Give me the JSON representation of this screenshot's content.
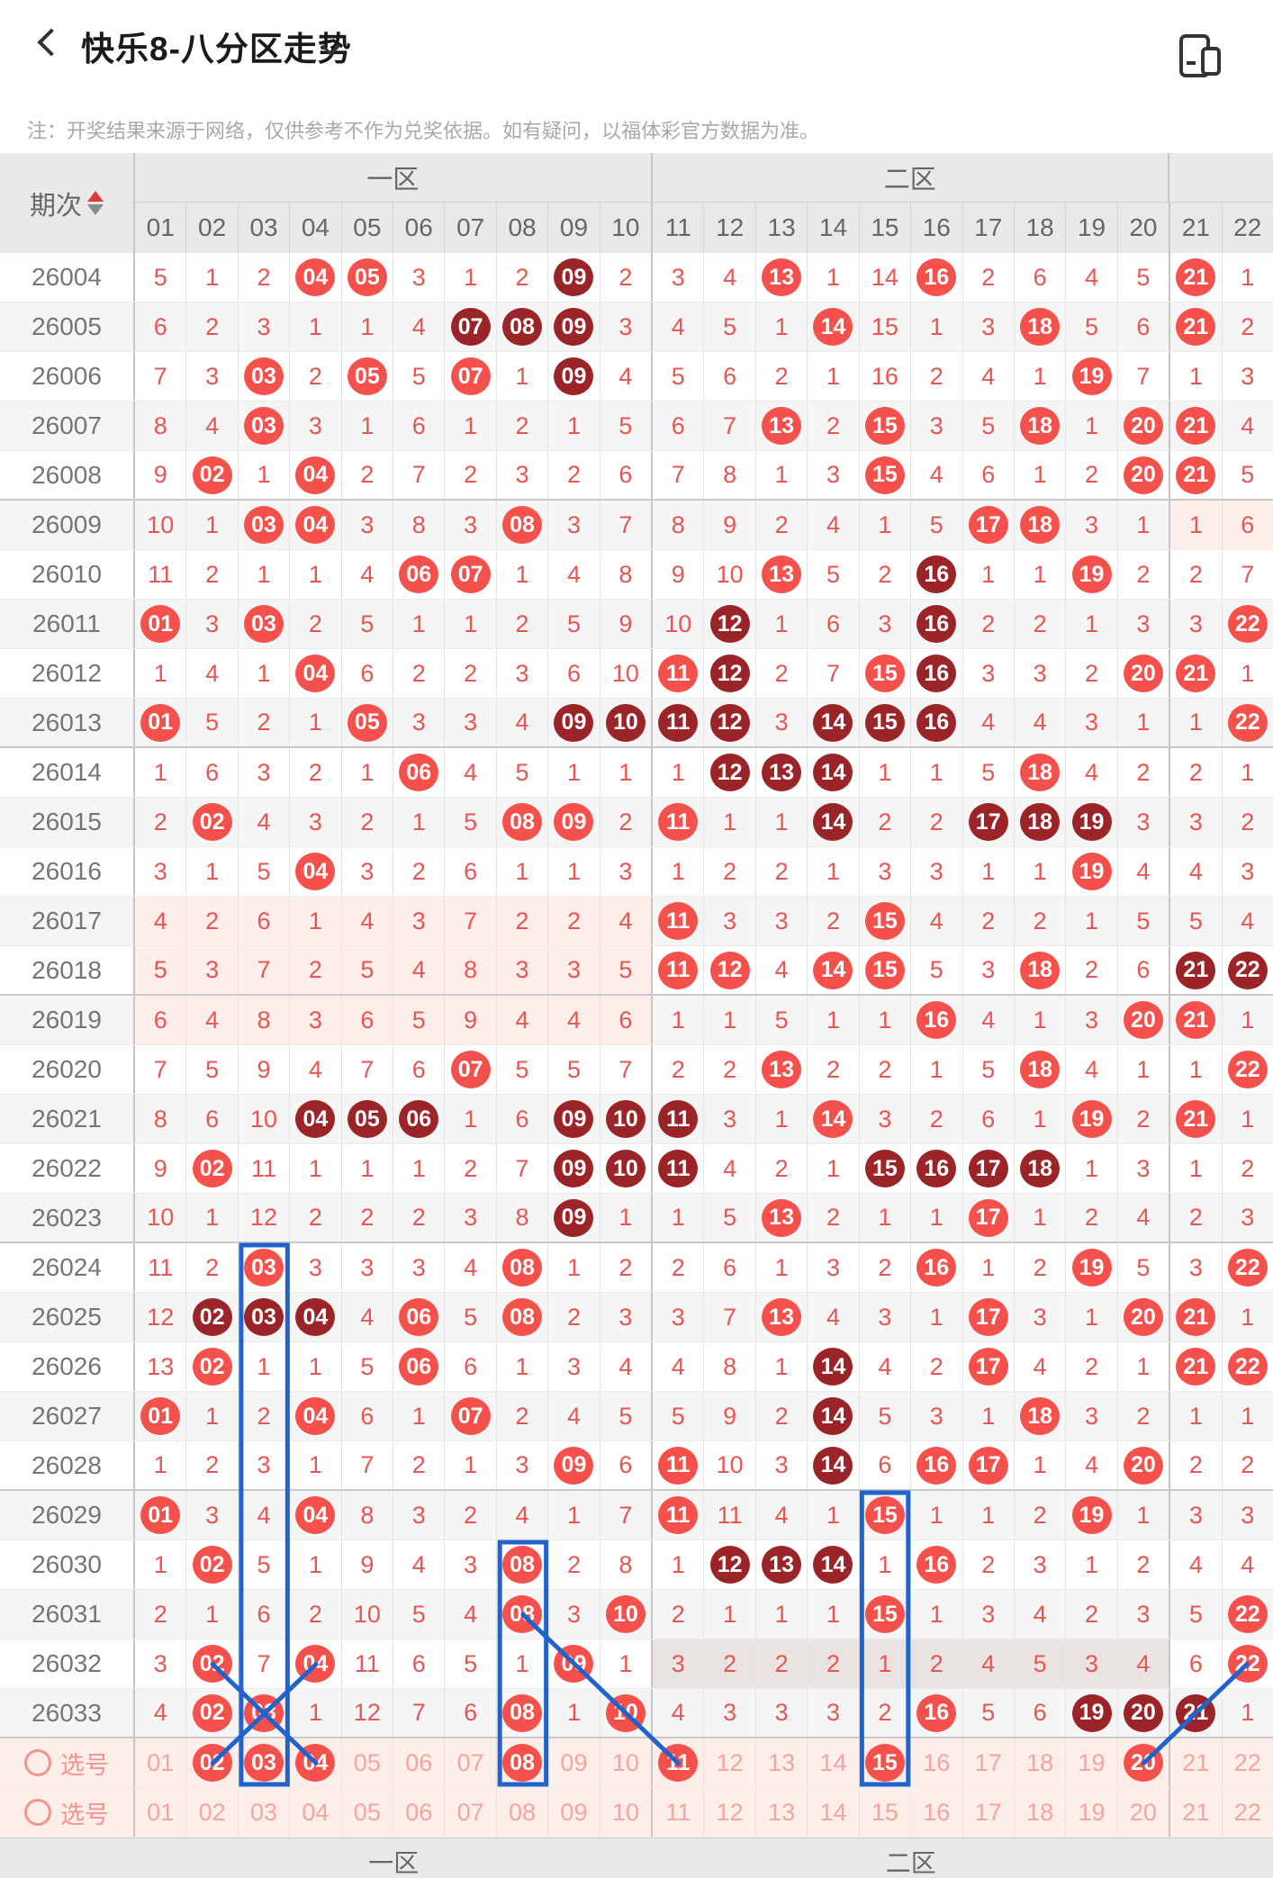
{
  "header": {
    "title": "快乐8-八分区走势",
    "note": "注：开奖结果来源于网络，仅供参考不作为兑奖依据。如有疑问，以福体彩官方数据为准。"
  },
  "table": {
    "index_label": "期次",
    "zones": [
      {
        "label": "一区",
        "span": 10
      },
      {
        "label": "二区",
        "span": 10
      },
      {
        "label": "",
        "span": 2
      }
    ],
    "columns": [
      "01",
      "02",
      "03",
      "04",
      "05",
      "06",
      "07",
      "08",
      "09",
      "10",
      "11",
      "12",
      "13",
      "14",
      "15",
      "16",
      "17",
      "18",
      "19",
      "20",
      "21",
      "22"
    ],
    "rows": [
      {
        "id": "26004",
        "cells": [
          "5",
          "1",
          "2",
          "b04",
          "b05",
          "3",
          "1",
          "2",
          "d09",
          "2",
          "3",
          "4",
          "b13",
          "1",
          "14",
          "b16",
          "2",
          "6",
          "4",
          "5",
          "b21",
          "1"
        ]
      },
      {
        "id": "26005",
        "cells": [
          "6",
          "2",
          "3",
          "1",
          "1",
          "4",
          "d07",
          "d08",
          "d09",
          "3",
          "4",
          "5",
          "1",
          "b14",
          "15",
          "1",
          "3",
          "b18",
          "5",
          "6",
          "b21",
          "2"
        ]
      },
      {
        "id": "26006",
        "cells": [
          "7",
          "3",
          "b03",
          "2",
          "b05",
          "5",
          "b07",
          "1",
          "d09",
          "4",
          "5",
          "6",
          "2",
          "1",
          "16",
          "2",
          "4",
          "1",
          "b19",
          "7",
          "1",
          "3"
        ]
      },
      {
        "id": "26007",
        "cells": [
          "8",
          "4",
          "b03",
          "3",
          "1",
          "6",
          "1",
          "2",
          "1",
          "5",
          "6",
          "7",
          "b13",
          "2",
          "b15",
          "3",
          "5",
          "b18",
          "1",
          "b20",
          "b21",
          "4"
        ]
      },
      {
        "id": "26008",
        "cells": [
          "9",
          "b02",
          "1",
          "b04",
          "2",
          "7",
          "2",
          "3",
          "2",
          "6",
          "7",
          "8",
          "1",
          "3",
          "b15",
          "4",
          "6",
          "1",
          "2",
          "b20",
          "b21",
          "5"
        ]
      },
      {
        "id": "26009",
        "cells": [
          "10",
          "1",
          "b03",
          "b04",
          "3",
          "8",
          "3",
          "b08",
          "3",
          "7",
          "8",
          "9",
          "2",
          "4",
          "1",
          "5",
          "b17",
          "b18",
          "3",
          "1",
          "1",
          "6"
        ],
        "hl": {
          "cols": [
            21,
            22
          ],
          "type": "pink"
        }
      },
      {
        "id": "26010",
        "cells": [
          "11",
          "2",
          "1",
          "1",
          "4",
          "b06",
          "b07",
          "1",
          "4",
          "8",
          "9",
          "10",
          "b13",
          "5",
          "2",
          "d16",
          "1",
          "1",
          "b19",
          "2",
          "2",
          "7"
        ]
      },
      {
        "id": "26011",
        "cells": [
          "b01",
          "3",
          "b03",
          "2",
          "5",
          "1",
          "1",
          "2",
          "5",
          "9",
          "10",
          "d12",
          "1",
          "6",
          "3",
          "d16",
          "2",
          "2",
          "1",
          "3",
          "3",
          "b22"
        ]
      },
      {
        "id": "26012",
        "cells": [
          "1",
          "4",
          "1",
          "b04",
          "6",
          "2",
          "2",
          "3",
          "6",
          "10",
          "b11",
          "d12",
          "2",
          "7",
          "b15",
          "d16",
          "3",
          "3",
          "2",
          "b20",
          "b21",
          "1"
        ]
      },
      {
        "id": "26013",
        "cells": [
          "b01",
          "5",
          "2",
          "1",
          "b05",
          "3",
          "3",
          "4",
          "d09",
          "d10",
          "d11",
          "d12",
          "3",
          "d14",
          "d15",
          "d16",
          "4",
          "4",
          "3",
          "1",
          "1",
          "b22"
        ]
      },
      {
        "id": "26014",
        "cells": [
          "1",
          "6",
          "3",
          "2",
          "1",
          "b06",
          "4",
          "5",
          "1",
          "1",
          "1",
          "d12",
          "d13",
          "d14",
          "1",
          "1",
          "5",
          "b18",
          "4",
          "2",
          "2",
          "1"
        ]
      },
      {
        "id": "26015",
        "cells": [
          "2",
          "b02",
          "4",
          "3",
          "2",
          "1",
          "5",
          "b08",
          "b09",
          "2",
          "b11",
          "1",
          "1",
          "d14",
          "2",
          "2",
          "d17",
          "d18",
          "d19",
          "3",
          "3",
          "2"
        ]
      },
      {
        "id": "26016",
        "cells": [
          "3",
          "1",
          "5",
          "b04",
          "3",
          "2",
          "6",
          "1",
          "1",
          "3",
          "1",
          "2",
          "2",
          "1",
          "3",
          "3",
          "1",
          "1",
          "b19",
          "4",
          "4",
          "3"
        ]
      },
      {
        "id": "26017",
        "cells": [
          "4",
          "2",
          "6",
          "1",
          "4",
          "3",
          "7",
          "2",
          "2",
          "4",
          "b11",
          "3",
          "3",
          "2",
          "b15",
          "4",
          "2",
          "2",
          "1",
          "5",
          "5",
          "4"
        ],
        "hl": {
          "cols": [
            1,
            10
          ],
          "type": "pink"
        }
      },
      {
        "id": "26018",
        "cells": [
          "5",
          "3",
          "7",
          "2",
          "5",
          "4",
          "8",
          "3",
          "3",
          "5",
          "b11",
          "b12",
          "4",
          "b14",
          "b15",
          "5",
          "3",
          "b18",
          "2",
          "6",
          "d21",
          "d22"
        ],
        "hl": {
          "cols": [
            1,
            10
          ],
          "type": "pink"
        }
      },
      {
        "id": "26019",
        "cells": [
          "6",
          "4",
          "8",
          "3",
          "6",
          "5",
          "9",
          "4",
          "4",
          "6",
          "1",
          "1",
          "5",
          "1",
          "1",
          "b16",
          "4",
          "1",
          "3",
          "b20",
          "b21",
          "1"
        ],
        "hl": {
          "cols": [
            1,
            10
          ],
          "type": "pink"
        }
      },
      {
        "id": "26020",
        "cells": [
          "7",
          "5",
          "9",
          "4",
          "7",
          "6",
          "b07",
          "5",
          "5",
          "7",
          "2",
          "2",
          "b13",
          "2",
          "2",
          "1",
          "5",
          "b18",
          "4",
          "1",
          "1",
          "b22"
        ]
      },
      {
        "id": "26021",
        "cells": [
          "8",
          "6",
          "10",
          "d04",
          "d05",
          "d06",
          "1",
          "6",
          "d09",
          "d10",
          "d11",
          "3",
          "1",
          "b14",
          "3",
          "2",
          "6",
          "1",
          "b19",
          "2",
          "b21",
          "1"
        ]
      },
      {
        "id": "26022",
        "cells": [
          "9",
          "b02",
          "11",
          "1",
          "1",
          "1",
          "2",
          "7",
          "d09",
          "d10",
          "d11",
          "4",
          "2",
          "1",
          "d15",
          "d16",
          "d17",
          "d18",
          "1",
          "3",
          "1",
          "2"
        ]
      },
      {
        "id": "26023",
        "cells": [
          "10",
          "1",
          "12",
          "2",
          "2",
          "2",
          "3",
          "8",
          "d09",
          "1",
          "1",
          "5",
          "b13",
          "2",
          "1",
          "1",
          "b17",
          "1",
          "2",
          "4",
          "2",
          "3"
        ]
      },
      {
        "id": "26024",
        "cells": [
          "11",
          "2",
          "b03",
          "3",
          "3",
          "3",
          "4",
          "b08",
          "1",
          "2",
          "2",
          "6",
          "1",
          "3",
          "2",
          "b16",
          "1",
          "2",
          "b19",
          "5",
          "3",
          "b22"
        ]
      },
      {
        "id": "26025",
        "cells": [
          "12",
          "d02",
          "d03",
          "d04",
          "4",
          "b06",
          "5",
          "b08",
          "2",
          "3",
          "3",
          "7",
          "b13",
          "4",
          "3",
          "1",
          "b17",
          "3",
          "1",
          "b20",
          "b21",
          "1"
        ]
      },
      {
        "id": "26026",
        "cells": [
          "13",
          "b02",
          "1",
          "1",
          "5",
          "b06",
          "6",
          "1",
          "3",
          "4",
          "4",
          "8",
          "1",
          "d14",
          "4",
          "2",
          "b17",
          "4",
          "2",
          "1",
          "b21",
          "b22"
        ]
      },
      {
        "id": "26027",
        "cells": [
          "b01",
          "1",
          "2",
          "b04",
          "6",
          "1",
          "b07",
          "2",
          "4",
          "5",
          "5",
          "9",
          "2",
          "d14",
          "5",
          "3",
          "1",
          "b18",
          "3",
          "2",
          "1",
          "1"
        ]
      },
      {
        "id": "26028",
        "cells": [
          "1",
          "2",
          "3",
          "1",
          "7",
          "2",
          "1",
          "3",
          "b09",
          "6",
          "b11",
          "10",
          "3",
          "d14",
          "6",
          "b16",
          "b17",
          "1",
          "4",
          "b20",
          "2",
          "2"
        ]
      },
      {
        "id": "26029",
        "cells": [
          "b01",
          "3",
          "4",
          "b04",
          "8",
          "3",
          "2",
          "4",
          "1",
          "7",
          "b11",
          "11",
          "4",
          "1",
          "b15",
          "1",
          "1",
          "2",
          "b19",
          "1",
          "3",
          "3"
        ]
      },
      {
        "id": "26030",
        "cells": [
          "1",
          "b02",
          "5",
          "1",
          "9",
          "4",
          "3",
          "b08",
          "2",
          "8",
          "1",
          "d12",
          "d13",
          "d14",
          "1",
          "b16",
          "2",
          "3",
          "1",
          "2",
          "4",
          "4"
        ]
      },
      {
        "id": "26031",
        "cells": [
          "2",
          "1",
          "6",
          "2",
          "10",
          "5",
          "4",
          "b08",
          "3",
          "b10",
          "2",
          "1",
          "1",
          "1",
          "b15",
          "1",
          "3",
          "4",
          "2",
          "3",
          "5",
          "b22"
        ]
      },
      {
        "id": "26032",
        "cells": [
          "3",
          "b02",
          "7",
          "b04",
          "11",
          "6",
          "5",
          "1",
          "b09",
          "1",
          "3",
          "2",
          "2",
          "2",
          "1",
          "2",
          "4",
          "5",
          "3",
          "4",
          "6",
          "b22"
        ],
        "hl": {
          "cols": [
            11,
            20
          ],
          "type": "gray"
        }
      },
      {
        "id": "26033",
        "cells": [
          "4",
          "b02",
          "b03",
          "1",
          "12",
          "7",
          "6",
          "b08",
          "1",
          "b10",
          "4",
          "3",
          "3",
          "3",
          "2",
          "b16",
          "5",
          "6",
          "d19",
          "d20",
          "d21",
          "1"
        ]
      }
    ],
    "sel_rows": [
      {
        "label": "选号",
        "cells": [
          "01",
          "b02",
          "b03",
          "b04",
          "05",
          "06",
          "07",
          "b08",
          "09",
          "10",
          "b11",
          "12",
          "13",
          "14",
          "b15",
          "16",
          "17",
          "18",
          "19",
          "b20",
          "21",
          "22"
        ]
      },
      {
        "label": "选号",
        "cells": [
          "01",
          "02",
          "03",
          "04",
          "05",
          "06",
          "07",
          "08",
          "09",
          "10",
          "11",
          "12",
          "13",
          "14",
          "15",
          "16",
          "17",
          "18",
          "19",
          "20",
          "21",
          "22"
        ]
      }
    ],
    "footer_zones": [
      "一区",
      "二区"
    ]
  },
  "annotations": {
    "color": "#2063cc",
    "rects": [
      {
        "col": 3,
        "from": "26024",
        "to": "sel1"
      },
      {
        "col": 8,
        "from": "26030",
        "to": "sel1"
      },
      {
        "col": 15,
        "from": "26029",
        "to": "sel1"
      }
    ],
    "lines": [
      {
        "from": {
          "row": "26032",
          "col": 2
        },
        "to": {
          "row": "sel1",
          "col": 4
        }
      },
      {
        "from": {
          "row": "26032",
          "col": 4
        },
        "to": {
          "row": "sel1",
          "col": 2
        }
      },
      {
        "from": {
          "row": "26031",
          "col": 8
        },
        "to": {
          "row": "sel1",
          "col": 11
        }
      },
      {
        "from": {
          "row": "26032",
          "col": 22
        },
        "to": {
          "row": "sel1",
          "col": 20
        }
      }
    ]
  },
  "colors": {
    "ball_bright": "#f4504c",
    "ball_dark": "#9a2428",
    "plain_text": "#e85552",
    "pink_bg": "#fdeeea",
    "pink_text": "#f5a49e",
    "gray_hl": "#e9e4e2",
    "header_bg": "#e9e9e9"
  }
}
